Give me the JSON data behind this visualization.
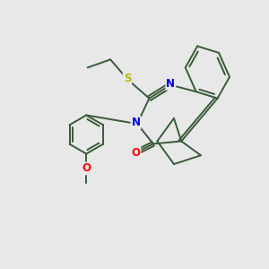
{
  "background_color": "#e8e8e8",
  "bond_color": "#3a5a3a",
  "bond_width": 1.4,
  "atom_colors": {
    "N": "#0000ee",
    "O": "#ff0000",
    "S": "#bbbb00"
  },
  "font_size": 8.5,
  "fig_size": [
    3.0,
    3.0
  ],
  "dpi": 100
}
